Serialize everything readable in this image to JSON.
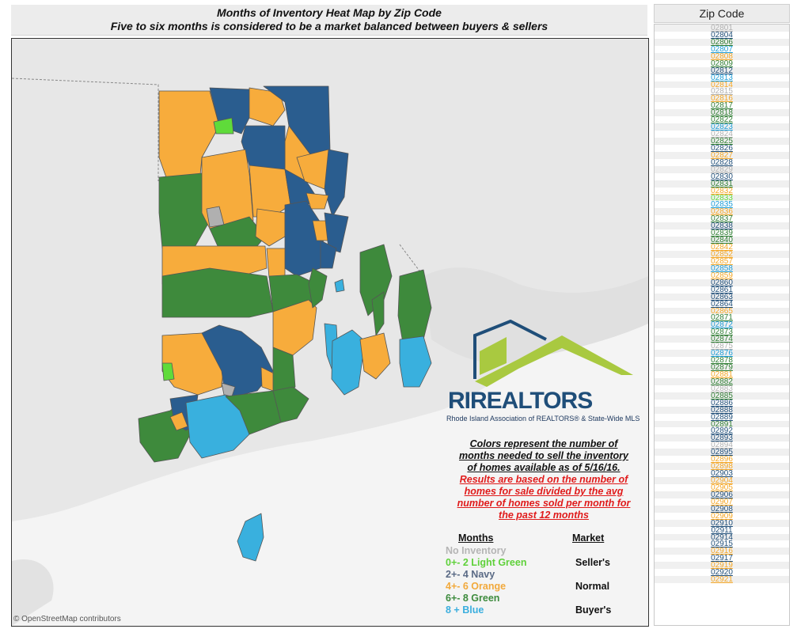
{
  "header": {
    "line1": "Months of Inventory Heat Map by Zip Code",
    "line2": "Five to six months is considered to be a market balanced between buyers & sellers"
  },
  "map": {
    "credit": "© OpenStreetMap contributors",
    "colors": {
      "no_inventory": "#b0b0b0",
      "light_green": "#5fdb3a",
      "navy": "#2a5d8f",
      "orange": "#f7ac3c",
      "green": "#3e8a3c",
      "blue": "#39b0de"
    }
  },
  "logo": {
    "brand": "RIREALTORS",
    "tagline": "Rhode Island Association of REALTORS® & State-Wide MLS"
  },
  "note": {
    "black_lines": [
      "Colors represent the number of",
      "months needed to sell the inventory",
      "of homes available as of 5/16/16."
    ],
    "red_lines": [
      "Results are based on the number of",
      "homes for sale divided by the avg",
      "number of homes sold per month for",
      "the past 12 months"
    ]
  },
  "legend": {
    "months_header": "Months",
    "market_header": "Market",
    "rows": [
      {
        "label": "No Inventory",
        "color": "#b5b5b5"
      },
      {
        "label": "0+- 2 Light Green",
        "color": "#5fd13a"
      },
      {
        "label": "2+- 4 Navy",
        "color": "#5a6a85"
      },
      {
        "label": "4+- 6 Orange",
        "color": "#f2a93b"
      },
      {
        "label": "6+- 8 Green",
        "color": "#3d8b3d"
      },
      {
        "label": "8 +    Blue",
        "color": "#3aaede"
      }
    ],
    "markets": [
      "Seller's",
      "Normal",
      "Buyer's"
    ]
  },
  "zip_panel": {
    "title": "Zip Code",
    "items": [
      {
        "z": "02801",
        "c": "#b0b0b0"
      },
      {
        "z": "02804",
        "c": "#1f4e79"
      },
      {
        "z": "02806",
        "c": "#2e7d32"
      },
      {
        "z": "02807",
        "c": "#1a9cd8"
      },
      {
        "z": "02808",
        "c": "#f5a623"
      },
      {
        "z": "02809",
        "c": "#2e7d32"
      },
      {
        "z": "02812",
        "c": "#1f4e79"
      },
      {
        "z": "02813",
        "c": "#1a9cd8"
      },
      {
        "z": "02814",
        "c": "#f5a623"
      },
      {
        "z": "02815",
        "c": "#b0b0b0"
      },
      {
        "z": "02816",
        "c": "#f5a623"
      },
      {
        "z": "02817",
        "c": "#2e7d32"
      },
      {
        "z": "02818",
        "c": "#2e7d32"
      },
      {
        "z": "02822",
        "c": "#2e7d32"
      },
      {
        "z": "02823",
        "c": "#1a9cd8"
      },
      {
        "z": "02824",
        "c": "#b0b0b0"
      },
      {
        "z": "02825",
        "c": "#2e7d32"
      },
      {
        "z": "02826",
        "c": "#1f4e79"
      },
      {
        "z": "02827",
        "c": "#f5a623"
      },
      {
        "z": "02828",
        "c": "#1f4e79"
      },
      {
        "z": "02829",
        "c": "#b0b0b0"
      },
      {
        "z": "02830",
        "c": "#1f4e79"
      },
      {
        "z": "02831",
        "c": "#2e7d32"
      },
      {
        "z": "02832",
        "c": "#f5a623"
      },
      {
        "z": "02833",
        "c": "#5fdb3a"
      },
      {
        "z": "02835",
        "c": "#1a9cd8"
      },
      {
        "z": "02836",
        "c": "#f5a623"
      },
      {
        "z": "02837",
        "c": "#2e7d32"
      },
      {
        "z": "02838",
        "c": "#1f4e79"
      },
      {
        "z": "02839",
        "c": "#2e7d32"
      },
      {
        "z": "02840",
        "c": "#2e7d32"
      },
      {
        "z": "02842",
        "c": "#f5a623"
      },
      {
        "z": "02852",
        "c": "#f5a623"
      },
      {
        "z": "02857",
        "c": "#f5a623"
      },
      {
        "z": "02858",
        "c": "#1a9cd8"
      },
      {
        "z": "02859",
        "c": "#f5a623"
      },
      {
        "z": "02860",
        "c": "#1f4e79"
      },
      {
        "z": "02861",
        "c": "#1f4e79"
      },
      {
        "z": "02863",
        "c": "#1f4e79"
      },
      {
        "z": "02864",
        "c": "#1f4e79"
      },
      {
        "z": "02865",
        "c": "#f5a623"
      },
      {
        "z": "02871",
        "c": "#2e7d32"
      },
      {
        "z": "02872",
        "c": "#1a9cd8"
      },
      {
        "z": "02873",
        "c": "#2e7d32"
      },
      {
        "z": "02874",
        "c": "#2e7d32"
      },
      {
        "z": "02875",
        "c": "#b0b0b0"
      },
      {
        "z": "02876",
        "c": "#1a9cd8"
      },
      {
        "z": "02878",
        "c": "#2e7d32"
      },
      {
        "z": "02879",
        "c": "#2e7d32"
      },
      {
        "z": "02881",
        "c": "#f5a623"
      },
      {
        "z": "02882",
        "c": "#2e7d32"
      },
      {
        "z": "02883",
        "c": "#b0b0b0"
      },
      {
        "z": "02885",
        "c": "#2e7d32"
      },
      {
        "z": "02886",
        "c": "#1f4e79"
      },
      {
        "z": "02888",
        "c": "#1f4e79"
      },
      {
        "z": "02889",
        "c": "#1f4e79"
      },
      {
        "z": "02891",
        "c": "#2e7d32"
      },
      {
        "z": "02892",
        "c": "#1f4e79"
      },
      {
        "z": "02893",
        "c": "#1f4e79"
      },
      {
        "z": "02894",
        "c": "#b0b0b0"
      },
      {
        "z": "02895",
        "c": "#1f4e79"
      },
      {
        "z": "02896",
        "c": "#f5a623"
      },
      {
        "z": "02898",
        "c": "#f5a623"
      },
      {
        "z": "02903",
        "c": "#1f4e79"
      },
      {
        "z": "02904",
        "c": "#f5a623"
      },
      {
        "z": "02905",
        "c": "#f5a623"
      },
      {
        "z": "02906",
        "c": "#1f4e79"
      },
      {
        "z": "02907",
        "c": "#f5a623"
      },
      {
        "z": "02908",
        "c": "#1f4e79"
      },
      {
        "z": "02909",
        "c": "#f5a623"
      },
      {
        "z": "02910",
        "c": "#1f4e79"
      },
      {
        "z": "02911",
        "c": "#1f4e79"
      },
      {
        "z": "02914",
        "c": "#1f4e79"
      },
      {
        "z": "02915",
        "c": "#1f4e79"
      },
      {
        "z": "02916",
        "c": "#f5a623"
      },
      {
        "z": "02917",
        "c": "#1f4e79"
      },
      {
        "z": "02919",
        "c": "#f5a623"
      },
      {
        "z": "02920",
        "c": "#1f4e79"
      },
      {
        "z": "02921",
        "c": "#f5a623"
      }
    ]
  }
}
